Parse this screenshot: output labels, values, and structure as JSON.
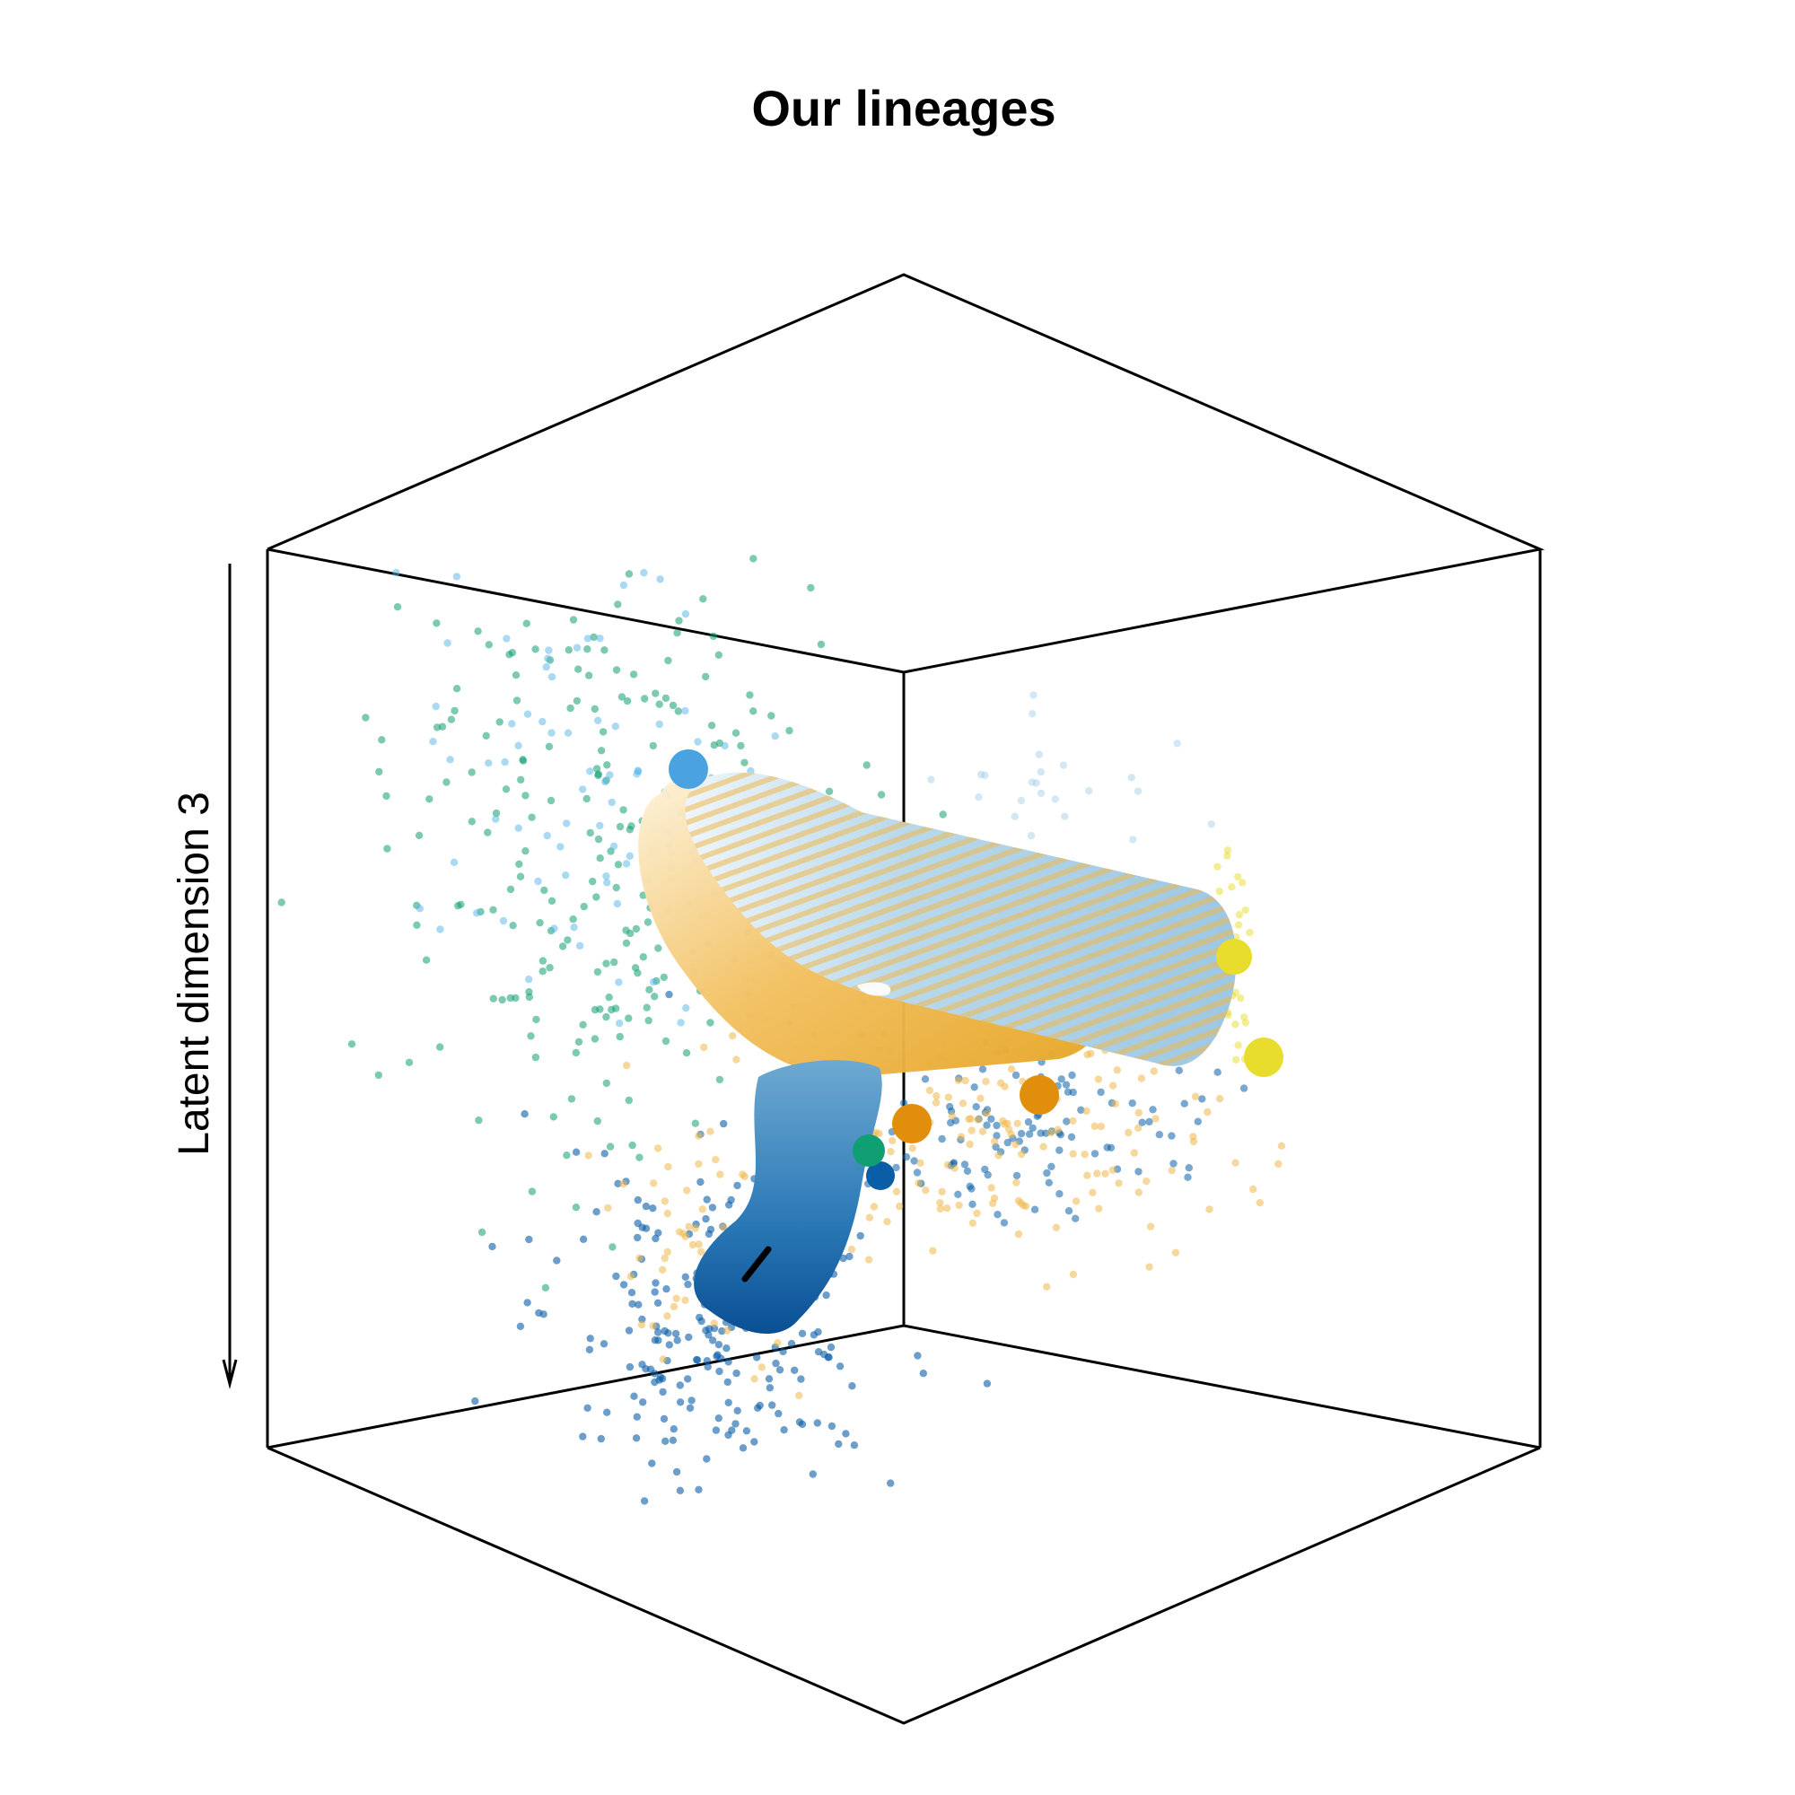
{
  "chart_data": {
    "type": "scatter",
    "title": "Our lineages",
    "zlabel": "Latent dimension 3",
    "colors": {
      "green": "#109E73",
      "sky_blue": "#56B4E9",
      "dark_blue": "#0A5EA8",
      "orange": "#E69F00",
      "light_orange": "#F0B84A",
      "yellow": "#E8DC2C",
      "pale_blue": "#A8D1EA"
    }
  }
}
